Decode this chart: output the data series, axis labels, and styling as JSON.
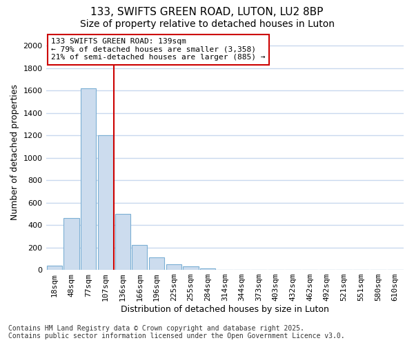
{
  "title_line1": "133, SWIFTS GREEN ROAD, LUTON, LU2 8BP",
  "title_line2": "Size of property relative to detached houses in Luton",
  "xlabel": "Distribution of detached houses by size in Luton",
  "ylabel": "Number of detached properties",
  "categories": [
    "18sqm",
    "48sqm",
    "77sqm",
    "107sqm",
    "136sqm",
    "166sqm",
    "196sqm",
    "225sqm",
    "255sqm",
    "284sqm",
    "314sqm",
    "344sqm",
    "373sqm",
    "403sqm",
    "432sqm",
    "462sqm",
    "492sqm",
    "521sqm",
    "551sqm",
    "580sqm",
    "610sqm"
  ],
  "values": [
    35,
    460,
    1620,
    1200,
    500,
    220,
    110,
    50,
    30,
    15,
    0,
    0,
    0,
    0,
    0,
    0,
    0,
    0,
    0,
    0,
    0
  ],
  "bar_color": "#ccdcee",
  "bar_edge_color": "#7bafd4",
  "vline_x": 4,
  "vline_color": "#cc0000",
  "annotation_title": "133 SWIFTS GREEN ROAD: 139sqm",
  "annotation_line1": "← 79% of detached houses are smaller (3,358)",
  "annotation_line2": "21% of semi-detached houses are larger (885) →",
  "annotation_box_facecolor": "#ffffff",
  "annotation_box_edgecolor": "#cc0000",
  "ylim": [
    0,
    2100
  ],
  "yticks": [
    0,
    200,
    400,
    600,
    800,
    1000,
    1200,
    1400,
    1600,
    1800,
    2000
  ],
  "footer_line1": "Contains HM Land Registry data © Crown copyright and database right 2025.",
  "footer_line2": "Contains public sector information licensed under the Open Government Licence v3.0.",
  "bg_color": "#ffffff",
  "plot_bg_color": "#ffffff",
  "grid_color": "#c8d8ee",
  "title_fontsize": 11,
  "subtitle_fontsize": 10,
  "label_fontsize": 9,
  "tick_fontsize": 8,
  "annot_fontsize": 8,
  "footer_fontsize": 7
}
